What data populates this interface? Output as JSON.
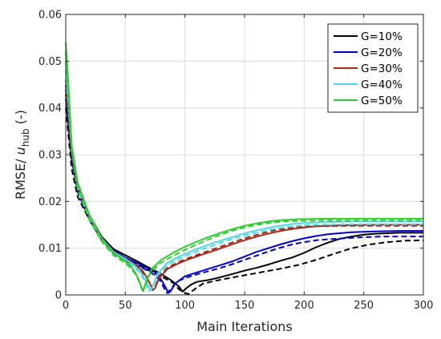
{
  "chart_data": {
    "type": "line",
    "xlabel": "Main Iterations",
    "ylabel_main": "RMSE/ ",
    "ylabel_var": "u",
    "ylabel_sub": "hub",
    "ylabel_unit": " (-)",
    "xlim": [
      0,
      300
    ],
    "ylim": [
      0,
      0.06
    ],
    "xticks": [
      0,
      50,
      100,
      150,
      200,
      250,
      300
    ],
    "xtick_labels": [
      "0",
      "50",
      "100",
      "150",
      "200",
      "250",
      "300"
    ],
    "yticks": [
      0,
      0.01,
      0.02,
      0.03,
      0.04,
      0.05,
      0.06
    ],
    "ytick_labels": [
      "0",
      "0.01",
      "0.02",
      "0.03",
      "0.04",
      "0.05",
      "0.06"
    ],
    "grid": true,
    "legend_position": "top-right",
    "series": [
      {
        "name": "G=10%",
        "color": "#000000",
        "solid": [
          [
            0,
            0.042
          ],
          [
            5,
            0.029
          ],
          [
            10,
            0.023
          ],
          [
            20,
            0.017
          ],
          [
            30,
            0.0125
          ],
          [
            40,
            0.0098
          ],
          [
            50,
            0.0085
          ],
          [
            60,
            0.0072
          ],
          [
            70,
            0.0058
          ],
          [
            80,
            0.0045
          ],
          [
            88,
            0.0032
          ],
          [
            95,
            0.0018
          ],
          [
            98,
            0.0007
          ],
          [
            100,
            0.0012
          ],
          [
            105,
            0.0022
          ],
          [
            110,
            0.0028
          ],
          [
            120,
            0.0032
          ],
          [
            130,
            0.0038
          ],
          [
            140,
            0.0045
          ],
          [
            150,
            0.0052
          ],
          [
            160,
            0.0058
          ],
          [
            170,
            0.0065
          ],
          [
            180,
            0.0073
          ],
          [
            190,
            0.008
          ],
          [
            200,
            0.009
          ],
          [
            210,
            0.0102
          ],
          [
            220,
            0.0112
          ],
          [
            230,
            0.012
          ],
          [
            240,
            0.0125
          ],
          [
            250,
            0.0129
          ],
          [
            260,
            0.0131
          ],
          [
            280,
            0.0133
          ],
          [
            300,
            0.0133
          ]
        ],
        "dashed": [
          [
            0,
            0.04
          ],
          [
            5,
            0.027
          ],
          [
            10,
            0.021
          ],
          [
            20,
            0.016
          ],
          [
            30,
            0.0118
          ],
          [
            40,
            0.0092
          ],
          [
            50,
            0.0078
          ],
          [
            60,
            0.0065
          ],
          [
            70,
            0.0052
          ],
          [
            80,
            0.004
          ],
          [
            90,
            0.0026
          ],
          [
            95,
            0.0012
          ],
          [
            100,
            0.0004
          ],
          [
            103,
            0.0002
          ],
          [
            108,
            0.0012
          ],
          [
            115,
            0.0024
          ],
          [
            125,
            0.003
          ],
          [
            135,
            0.0035
          ],
          [
            150,
            0.0042
          ],
          [
            165,
            0.0049
          ],
          [
            180,
            0.0056
          ],
          [
            195,
            0.0064
          ],
          [
            210,
            0.0075
          ],
          [
            225,
            0.0088
          ],
          [
            240,
            0.01
          ],
          [
            255,
            0.0108
          ],
          [
            270,
            0.0113
          ],
          [
            285,
            0.0116
          ],
          [
            300,
            0.0117
          ]
        ]
      },
      {
        "name": "G=20%",
        "color": "#0000c8",
        "solid": [
          [
            0,
            0.044
          ],
          [
            5,
            0.03
          ],
          [
            10,
            0.023
          ],
          [
            20,
            0.017
          ],
          [
            30,
            0.0123
          ],
          [
            40,
            0.0095
          ],
          [
            50,
            0.008
          ],
          [
            60,
            0.0068
          ],
          [
            68,
            0.0058
          ],
          [
            75,
            0.0048
          ],
          [
            80,
            0.0033
          ],
          [
            84,
            0.0015
          ],
          [
            86,
            0.0004
          ],
          [
            88,
            0.0008
          ],
          [
            92,
            0.0025
          ],
          [
            100,
            0.004
          ],
          [
            110,
            0.0048
          ],
          [
            120,
            0.0056
          ],
          [
            130,
            0.0064
          ],
          [
            140,
            0.0072
          ],
          [
            150,
            0.0082
          ],
          [
            160,
            0.0092
          ],
          [
            170,
            0.01
          ],
          [
            180,
            0.0108
          ],
          [
            190,
            0.0115
          ],
          [
            200,
            0.0121
          ],
          [
            210,
            0.0126
          ],
          [
            220,
            0.013
          ],
          [
            240,
            0.0134
          ],
          [
            260,
            0.0136
          ],
          [
            280,
            0.0137
          ],
          [
            300,
            0.0137
          ]
        ],
        "dashed": [
          [
            0,
            0.043
          ],
          [
            5,
            0.029
          ],
          [
            10,
            0.022
          ],
          [
            20,
            0.016
          ],
          [
            30,
            0.0118
          ],
          [
            40,
            0.009
          ],
          [
            50,
            0.0075
          ],
          [
            60,
            0.0063
          ],
          [
            68,
            0.0053
          ],
          [
            75,
            0.0042
          ],
          [
            80,
            0.0028
          ],
          [
            83,
            0.0012
          ],
          [
            85,
            0.0004
          ],
          [
            88,
            0.0012
          ],
          [
            93,
            0.0028
          ],
          [
            100,
            0.0036
          ],
          [
            110,
            0.0044
          ],
          [
            120,
            0.0051
          ],
          [
            130,
            0.0058
          ],
          [
            140,
            0.0066
          ],
          [
            150,
            0.0075
          ],
          [
            160,
            0.0084
          ],
          [
            170,
            0.0093
          ],
          [
            180,
            0.0101
          ],
          [
            190,
            0.0108
          ],
          [
            200,
            0.0113
          ],
          [
            210,
            0.0117
          ],
          [
            225,
            0.012
          ],
          [
            245,
            0.0123
          ],
          [
            265,
            0.0125
          ],
          [
            300,
            0.0125
          ]
        ]
      },
      {
        "name": "G=30%",
        "color": "#a52a1a",
        "solid": [
          [
            0,
            0.046
          ],
          [
            5,
            0.031
          ],
          [
            10,
            0.0235
          ],
          [
            20,
            0.017
          ],
          [
            30,
            0.0122
          ],
          [
            40,
            0.0093
          ],
          [
            50,
            0.0078
          ],
          [
            58,
            0.0066
          ],
          [
            64,
            0.0053
          ],
          [
            68,
            0.0038
          ],
          [
            71,
            0.0022
          ],
          [
            73,
            0.001
          ],
          [
            75,
            0.0015
          ],
          [
            78,
            0.0035
          ],
          [
            85,
            0.0055
          ],
          [
            95,
            0.0068
          ],
          [
            105,
            0.0078
          ],
          [
            115,
            0.0087
          ],
          [
            125,
            0.0095
          ],
          [
            135,
            0.0104
          ],
          [
            145,
            0.0113
          ],
          [
            155,
            0.0121
          ],
          [
            165,
            0.0128
          ],
          [
            175,
            0.0134
          ],
          [
            185,
            0.0139
          ],
          [
            195,
            0.0143
          ],
          [
            210,
            0.0147
          ],
          [
            230,
            0.0149
          ],
          [
            260,
            0.015
          ],
          [
            300,
            0.015
          ]
        ],
        "dashed": [
          [
            0,
            0.045
          ],
          [
            5,
            0.03
          ],
          [
            10,
            0.023
          ],
          [
            20,
            0.0165
          ],
          [
            30,
            0.0118
          ],
          [
            40,
            0.0089
          ],
          [
            50,
            0.0074
          ],
          [
            58,
            0.0062
          ],
          [
            64,
            0.005
          ],
          [
            68,
            0.0036
          ],
          [
            71,
            0.0022
          ],
          [
            73,
            0.0012
          ],
          [
            75,
            0.0018
          ],
          [
            78,
            0.0038
          ],
          [
            85,
            0.0058
          ],
          [
            95,
            0.0071
          ],
          [
            105,
            0.0081
          ],
          [
            115,
            0.009
          ],
          [
            125,
            0.0099
          ],
          [
            135,
            0.0108
          ],
          [
            145,
            0.0117
          ],
          [
            155,
            0.0125
          ],
          [
            165,
            0.0132
          ],
          [
            175,
            0.0138
          ],
          [
            185,
            0.0142
          ],
          [
            195,
            0.0145
          ],
          [
            210,
            0.0147
          ],
          [
            240,
            0.0148
          ],
          [
            300,
            0.0148
          ]
        ]
      },
      {
        "name": "G=40%",
        "color": "#4fd7e6",
        "solid": [
          [
            0,
            0.05
          ],
          [
            5,
            0.032
          ],
          [
            10,
            0.024
          ],
          [
            20,
            0.017
          ],
          [
            30,
            0.0122
          ],
          [
            40,
            0.0092
          ],
          [
            50,
            0.0077
          ],
          [
            57,
            0.0065
          ],
          [
            62,
            0.0052
          ],
          [
            66,
            0.0036
          ],
          [
            69,
            0.002
          ],
          [
            71,
            0.001
          ],
          [
            73,
            0.0018
          ],
          [
            77,
            0.0045
          ],
          [
            85,
            0.0068
          ],
          [
            95,
            0.0082
          ],
          [
            105,
            0.0093
          ],
          [
            115,
            0.0103
          ],
          [
            125,
            0.0112
          ],
          [
            135,
            0.012
          ],
          [
            145,
            0.0128
          ],
          [
            155,
            0.0135
          ],
          [
            165,
            0.0141
          ],
          [
            175,
            0.0146
          ],
          [
            185,
            0.015
          ],
          [
            195,
            0.0153
          ],
          [
            210,
            0.0155
          ],
          [
            240,
            0.0157
          ],
          [
            300,
            0.0157
          ]
        ],
        "dashed": [
          [
            0,
            0.048
          ],
          [
            5,
            0.031
          ],
          [
            10,
            0.023
          ],
          [
            20,
            0.0165
          ],
          [
            30,
            0.0118
          ],
          [
            40,
            0.0088
          ],
          [
            50,
            0.0073
          ],
          [
            57,
            0.0061
          ],
          [
            62,
            0.0048
          ],
          [
            66,
            0.0032
          ],
          [
            68,
            0.0018
          ],
          [
            70,
            0.0008
          ],
          [
            72,
            0.0012
          ],
          [
            76,
            0.0038
          ],
          [
            84,
            0.0062
          ],
          [
            94,
            0.0076
          ],
          [
            104,
            0.0087
          ],
          [
            114,
            0.0097
          ],
          [
            124,
            0.0106
          ],
          [
            134,
            0.0115
          ],
          [
            144,
            0.0123
          ],
          [
            154,
            0.013
          ],
          [
            164,
            0.0136
          ],
          [
            174,
            0.0141
          ],
          [
            184,
            0.0145
          ],
          [
            194,
            0.0148
          ],
          [
            210,
            0.015
          ],
          [
            240,
            0.0151
          ],
          [
            300,
            0.0151
          ]
        ]
      },
      {
        "name": "G=50%",
        "color": "#2ecc2e",
        "solid": [
          [
            0,
            0.054
          ],
          [
            2,
            0.046
          ],
          [
            5,
            0.032
          ],
          [
            10,
            0.024
          ],
          [
            20,
            0.017
          ],
          [
            30,
            0.0122
          ],
          [
            40,
            0.009
          ],
          [
            50,
            0.0072
          ],
          [
            55,
            0.006
          ],
          [
            59,
            0.0045
          ],
          [
            62,
            0.0028
          ],
          [
            64,
            0.0012
          ],
          [
            65,
            0.0008
          ],
          [
            67,
            0.0025
          ],
          [
            72,
            0.0055
          ],
          [
            80,
            0.0075
          ],
          [
            90,
            0.009
          ],
          [
            100,
            0.0103
          ],
          [
            110,
            0.0114
          ],
          [
            120,
            0.0124
          ],
          [
            130,
            0.0133
          ],
          [
            140,
            0.0141
          ],
          [
            150,
            0.0148
          ],
          [
            160,
            0.0153
          ],
          [
            170,
            0.0157
          ],
          [
            180,
            0.016
          ],
          [
            195,
            0.0162
          ],
          [
            220,
            0.0163
          ],
          [
            300,
            0.0163
          ]
        ],
        "dashed": [
          [
            0,
            0.052
          ],
          [
            2,
            0.044
          ],
          [
            5,
            0.031
          ],
          [
            10,
            0.0225
          ],
          [
            20,
            0.016
          ],
          [
            30,
            0.0115
          ],
          [
            40,
            0.0085
          ],
          [
            50,
            0.0068
          ],
          [
            55,
            0.0056
          ],
          [
            59,
            0.0042
          ],
          [
            62,
            0.0026
          ],
          [
            64,
            0.0012
          ],
          [
            66,
            0.0016
          ],
          [
            70,
            0.0042
          ],
          [
            78,
            0.0066
          ],
          [
            88,
            0.0081
          ],
          [
            98,
            0.0094
          ],
          [
            108,
            0.0106
          ],
          [
            118,
            0.0117
          ],
          [
            128,
            0.0127
          ],
          [
            138,
            0.0136
          ],
          [
            148,
            0.0143
          ],
          [
            158,
            0.0149
          ],
          [
            168,
            0.0153
          ],
          [
            178,
            0.0156
          ],
          [
            190,
            0.0158
          ],
          [
            220,
            0.0159
          ],
          [
            300,
            0.0159
          ]
        ]
      }
    ]
  }
}
